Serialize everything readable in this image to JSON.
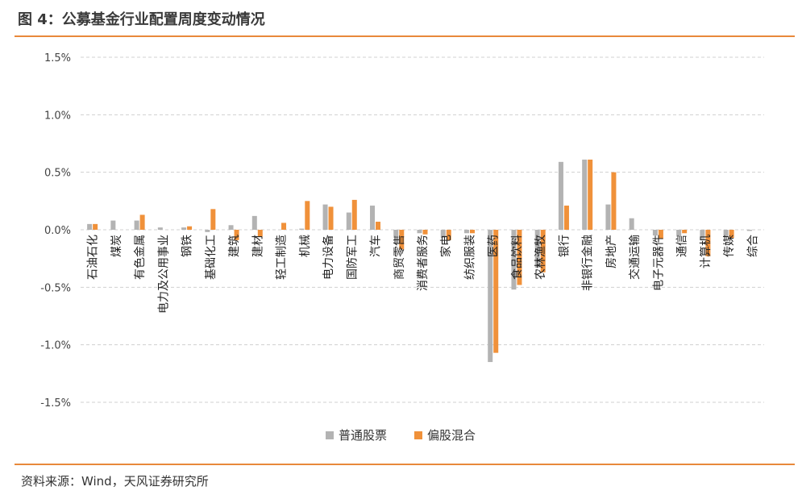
{
  "header": {
    "title": "图 4：公募基金行业配置周度变动情况"
  },
  "footer": {
    "source": "资料来源：Wind，天风证券研究所"
  },
  "colors": {
    "series1": "#b3b3b3",
    "series2": "#f0913a",
    "rule": "#e8893b",
    "grid": "#d0d0d0"
  },
  "chart_data": {
    "type": "bar",
    "title": "",
    "xlabel": "",
    "ylabel": "",
    "ylim": [
      -1.5,
      1.5
    ],
    "yticks": [
      "1.5%",
      "1.0%",
      "0.5%",
      "0.0%",
      "-0.5%",
      "-1.0%",
      "-1.5%"
    ],
    "ytick_values": [
      1.5,
      1.0,
      0.5,
      0.0,
      -0.5,
      -1.0,
      -1.5
    ],
    "grid": true,
    "legend": "bottom",
    "categories": [
      "石油石化",
      "煤炭",
      "有色金属",
      "电力及公用事业",
      "钢铁",
      "基础化工",
      "建筑",
      "建材",
      "轻工制造",
      "机械",
      "电力设备",
      "国防军工",
      "汽车",
      "商贸零售",
      "消费者服务",
      "家电",
      "纺织服装",
      "医药",
      "食品饮料",
      "农林渔牧",
      "银行",
      "非银行金融",
      "房地产",
      "交通运输",
      "电子元器件",
      "通信",
      "计算机",
      "传媒",
      "综合"
    ],
    "series": [
      {
        "name": "普通股票",
        "values": [
          0.05,
          0.08,
          0.08,
          0.02,
          0.02,
          -0.02,
          0.04,
          0.12,
          0.0,
          0.01,
          0.22,
          0.15,
          0.21,
          -0.07,
          -0.03,
          -0.07,
          -0.03,
          -1.15,
          -0.52,
          -0.33,
          0.59,
          0.61,
          0.22,
          0.1,
          -0.05,
          -0.06,
          -0.09,
          -0.06,
          -0.01
        ]
      },
      {
        "name": "偏股混合",
        "values": [
          0.05,
          0.0,
          0.13,
          0.0,
          0.03,
          0.18,
          -0.09,
          -0.06,
          0.06,
          0.25,
          0.2,
          0.26,
          0.07,
          -0.17,
          -0.04,
          -0.09,
          -0.03,
          -1.07,
          -0.48,
          -0.37,
          0.21,
          0.61,
          0.5,
          0.0,
          -0.08,
          -0.03,
          -0.23,
          -0.07,
          0.0
        ]
      }
    ]
  }
}
